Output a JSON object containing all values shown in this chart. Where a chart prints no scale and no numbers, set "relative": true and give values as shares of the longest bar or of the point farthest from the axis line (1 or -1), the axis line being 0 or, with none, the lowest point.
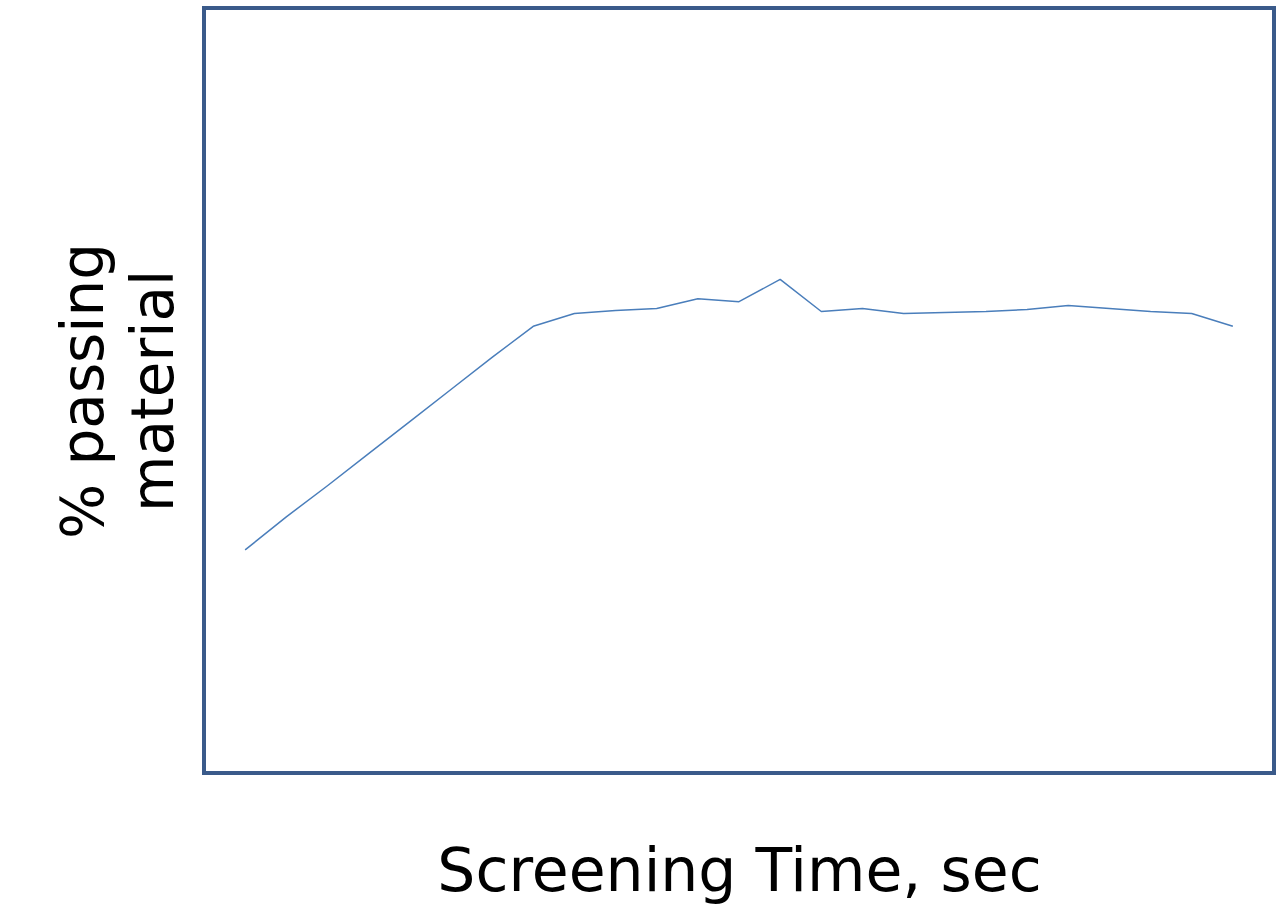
{
  "chart_data": {
    "type": "line",
    "relative": true,
    "xlabel": "Screening Time, sec",
    "ylabel": "%  passing\nmaterial",
    "color": "#4a7ebb",
    "categories": [
      null,
      null,
      null,
      null,
      null,
      null,
      null,
      null,
      null,
      null,
      null,
      null,
      null,
      null,
      null,
      null,
      null,
      null,
      null,
      null,
      null,
      null,
      null,
      null,
      null
    ],
    "values": [
      0.452,
      0.519,
      0.582,
      0.647,
      0.712,
      0.777,
      0.842,
      0.905,
      0.931,
      0.937,
      0.941,
      0.961,
      0.955,
      1.0,
      0.935,
      0.941,
      0.931,
      0.933,
      0.935,
      0.939,
      0.947,
      0.941,
      0.935,
      0.931,
      0.905
    ]
  }
}
